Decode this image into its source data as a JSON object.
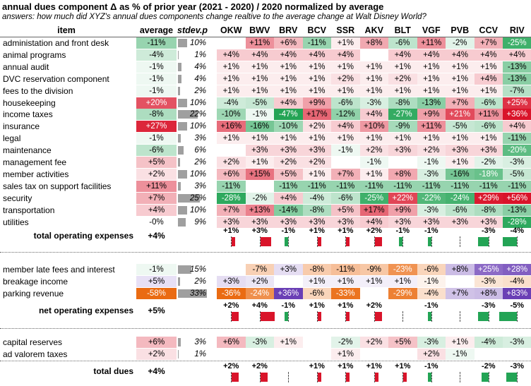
{
  "title": "annual dues component Δ as % of prior year (2021 - 2020) / 2020 normalized by average",
  "subtitle": "answers: how much did XYZ's annual dues components change realtive to the average change at Walt Disney World?",
  "headers": {
    "item": "item",
    "average": "average",
    "stdev": "stdev.p",
    "resorts": [
      "OKW",
      "BWV",
      "BRV",
      "BCV",
      "SSR",
      "AKV",
      "BLT",
      "VGF",
      "PVB",
      "CCV",
      "RIV"
    ]
  },
  "colors": {
    "pos_max": "#d9142a",
    "neg_max": "#23a455",
    "orange": "#ea6b12",
    "purple": "#6a3fb5",
    "stdev_bar": "#9f9f9f"
  },
  "section1": [
    {
      "label": "administation and front desk",
      "avg": "-11%",
      "sd": "10%",
      "v": [
        "",
        "+11%",
        "+6%",
        "-11%",
        "+1%",
        "+8%",
        "-6%",
        "+11%",
        "-2%",
        "+7%",
        "-25%"
      ]
    },
    {
      "label": "animal programs",
      "avg": "-4%",
      "sd": "1%",
      "v": [
        "+4%",
        "+4%",
        "+4%",
        "+4%",
        "+4%",
        "",
        "+4%",
        "+4%",
        "+4%",
        "+4%",
        "+4%"
      ]
    },
    {
      "label": "annual audit",
      "avg": "-1%",
      "sd": "4%",
      "v": [
        "+1%",
        "+1%",
        "+1%",
        "+1%",
        "+1%",
        "+1%",
        "+1%",
        "+1%",
        "+1%",
        "+1%",
        "-13%"
      ]
    },
    {
      "label": "DVC reservation component",
      "avg": "-1%",
      "sd": "4%",
      "v": [
        "+1%",
        "+1%",
        "+1%",
        "+1%",
        "+2%",
        "+1%",
        "+2%",
        "+1%",
        "+1%",
        "+4%",
        "-13%"
      ]
    },
    {
      "label": "fees to the division",
      "avg": "-1%",
      "sd": "2%",
      "v": [
        "+1%",
        "+1%",
        "+1%",
        "+1%",
        "+1%",
        "+1%",
        "+1%",
        "+1%",
        "+1%",
        "+1%",
        "-7%"
      ]
    },
    {
      "label": "housekeeping",
      "avg": "+20%",
      "sd": "10%",
      "v": [
        "-4%",
        "-5%",
        "+4%",
        "+9%",
        "-6%",
        "-3%",
        "-8%",
        "-13%",
        "+7%",
        "-6%",
        "+25%"
      ]
    },
    {
      "label": "income taxes",
      "avg": "-8%",
      "sd": "22%",
      "v": [
        "-10%",
        "-1%",
        "-47%",
        "+17%",
        "-12%",
        "+4%",
        "-27%",
        "+9%",
        "+21%",
        "+11%",
        "+36%"
      ]
    },
    {
      "label": "insurance",
      "avg": "+27%",
      "sd": "10%",
      "v": [
        "+16%",
        "-16%",
        "-10%",
        "+2%",
        "+4%",
        "+10%",
        "-9%",
        "+11%",
        "-5%",
        "-6%",
        "+4%"
      ]
    },
    {
      "label": "legal",
      "avg": "-1%",
      "sd": "3%",
      "v": [
        "+1%",
        "+1%",
        "+1%",
        "+1%",
        "+1%",
        "+1%",
        "+1%",
        "+1%",
        "+1%",
        "+1%",
        "-11%"
      ]
    },
    {
      "label": "maintenance",
      "avg": "-6%",
      "sd": "6%",
      "v": [
        "",
        "+3%",
        "+3%",
        "+3%",
        "-1%",
        "+2%",
        "+3%",
        "+2%",
        "+3%",
        "+3%",
        "-20%"
      ]
    },
    {
      "label": "management fee",
      "avg": "+5%",
      "sd": "2%",
      "v": [
        "+2%",
        "+1%",
        "+2%",
        "+2%",
        "",
        "-1%",
        "",
        "-1%",
        "+1%",
        "-2%",
        "-3%"
      ]
    },
    {
      "label": "member activities",
      "avg": "+2%",
      "sd": "10%",
      "v": [
        "+6%",
        "+15%",
        "+5%",
        "+1%",
        "+7%",
        "+1%",
        "+8%",
        "-3%",
        "-16%",
        "-18%",
        "-5%"
      ]
    },
    {
      "label": "sales tax on support facilities",
      "avg": "+11%",
      "sd": "3%",
      "v": [
        "-11%",
        "",
        "-11%",
        "-11%",
        "-11%",
        "-11%",
        "-11%",
        "-11%",
        "-11%",
        "-11%",
        "-11%"
      ]
    },
    {
      "label": "security",
      "avg": "+7%",
      "sd": "25%",
      "v": [
        "-28%",
        "-2%",
        "+4%",
        "-4%",
        "-6%",
        "-25%",
        "+22%",
        "-22%",
        "-24%",
        "+29%",
        "+56%"
      ]
    },
    {
      "label": "transportation",
      "avg": "+4%",
      "sd": "10%",
      "v": [
        "+7%",
        "+13%",
        "-14%",
        "-8%",
        "+5%",
        "+17%",
        "+9%",
        "-3%",
        "-6%",
        "-8%",
        "-13%"
      ]
    },
    {
      "label": "utilities",
      "avg": "-0%",
      "sd": "9%",
      "v": [
        "+3%",
        "+3%",
        "+3%",
        "+3%",
        "+3%",
        "+4%",
        "+3%",
        "+3%",
        "+3%",
        "+3%",
        "-28%"
      ]
    }
  ],
  "total_operating": {
    "label": "total operating expenses",
    "avg": "+4%",
    "v": [
      "+1%",
      "+3%",
      "-1%",
      "+1%",
      "+1%",
      "+2%",
      "-1%",
      "-1%",
      "",
      "-3%",
      "-4%"
    ],
    "n": [
      1,
      3,
      -1,
      1,
      1,
      2,
      -1,
      -1,
      0,
      -3,
      -4
    ]
  },
  "section2": [
    {
      "label": "member late fees and interest",
      "avg": "-1%",
      "sd": "15%",
      "v": [
        "",
        "-7%",
        "+3%",
        "-8%",
        "-11%",
        "-9%",
        "-23%",
        "-6%",
        "+8%",
        "+25%",
        "+28%"
      ]
    },
    {
      "label": "breakage income",
      "avg": "+5%",
      "sd": "2%",
      "v": [
        "+3%",
        "+2%",
        "",
        "+1%",
        "+1%",
        "+1%",
        "+1%",
        "-1%",
        "",
        "-3%",
        "-4%"
      ]
    },
    {
      "label": "parking revenue",
      "avg": "-58%",
      "sd": "33%",
      "v": [
        "-36%",
        "-24%",
        "+36%",
        "-6%",
        "-33%",
        "",
        "-29%",
        "-4%",
        "+7%",
        "+8%",
        "+83%"
      ]
    }
  ],
  "net_operating": {
    "label": "net operating expenses",
    "avg": "+5%",
    "v": [
      "+2%",
      "+4%",
      "-1%",
      "+1%",
      "+1%",
      "+2%",
      "",
      "-1%",
      "",
      "-3%",
      "-5%"
    ],
    "n": [
      2,
      4,
      -1,
      1,
      1,
      2,
      0,
      -1,
      0,
      -3,
      -5
    ]
  },
  "section3": [
    {
      "label": "capital reserves",
      "avg": "+6%",
      "sd": "3%",
      "v": [
        "+6%",
        "-3%",
        "+1%",
        "",
        "-2%",
        "+2%",
        "+5%",
        "-3%",
        "+1%",
        "-4%",
        "-3%"
      ]
    },
    {
      "label": "ad valorem taxes",
      "avg": "+2%",
      "sd": "1%",
      "v": [
        "",
        "",
        "",
        "",
        "+1%",
        "",
        "",
        "+2%",
        "-1%",
        "",
        ""
      ]
    }
  ],
  "total_dues": {
    "label": "total dues",
    "avg": "+4%",
    "v": [
      "+2%",
      "+2%",
      "",
      "+1%",
      "+1%",
      "+1%",
      "+1%",
      "-1%",
      "",
      "-2%",
      "-3%"
    ],
    "n": [
      2,
      2,
      0,
      1,
      1,
      1,
      1,
      -1,
      0,
      -2,
      -3
    ]
  }
}
